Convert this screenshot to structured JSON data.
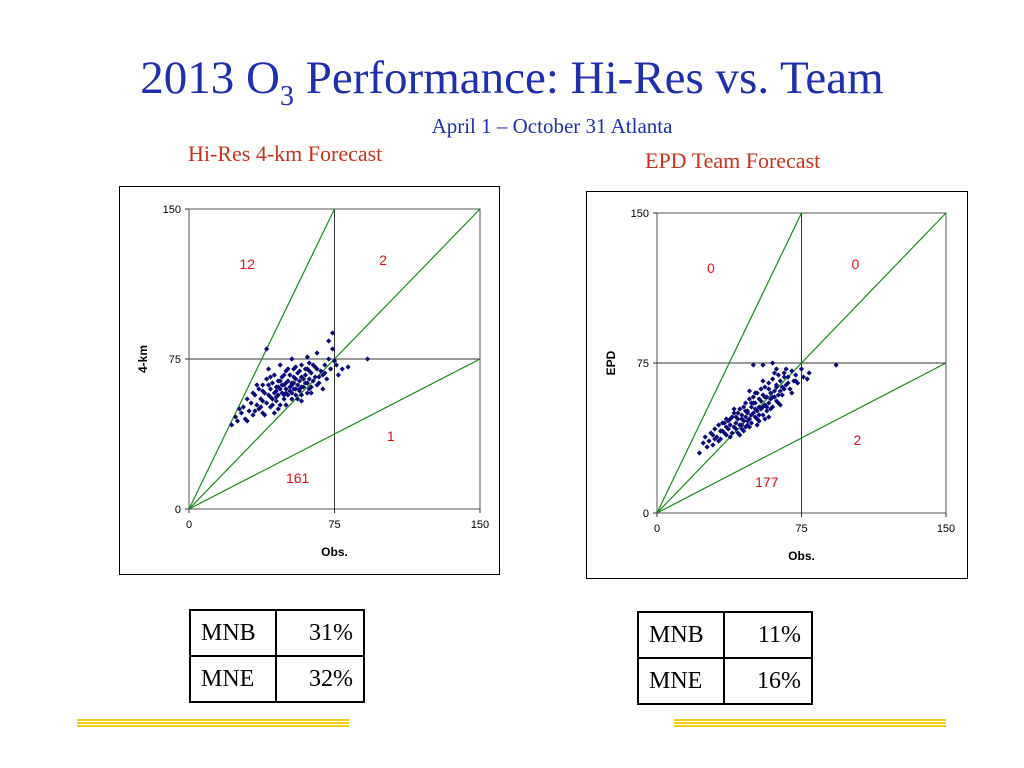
{
  "slide": {
    "title_main": "2013 O",
    "title_sub": "3",
    "title_rest": " Performance: Hi-Res vs. Team",
    "subtitle": "April 1 – October 31 Atlanta"
  },
  "panels": [
    {
      "title": "Hi-Res 4-km Forecast",
      "stats": [
        {
          "label": "MNB",
          "value": "31%"
        },
        {
          "label": "MNE",
          "value": "32%"
        }
      ]
    },
    {
      "title": "EPD Team Forecast",
      "stats": [
        {
          "label": "MNB",
          "value": "11%"
        },
        {
          "label": "MNE",
          "value": "16%"
        }
      ]
    }
  ],
  "colors": {
    "title": "#1f2fae",
    "panel_title": "#c8321e",
    "points": "#0a0a7a",
    "lines": "#1a8a1a",
    "counts": "#e01010",
    "footer": "#f2cc1c"
  },
  "chart_data": [
    {
      "type": "scatter",
      "xlabel": "Obs.",
      "ylabel": "4-km",
      "xlim": [
        0,
        150
      ],
      "ylim": [
        0,
        150
      ],
      "xticks": [
        0,
        75,
        150
      ],
      "yticks": [
        0,
        75,
        150
      ],
      "reference_lines": [
        {
          "slope": 2,
          "label": "2:1"
        },
        {
          "slope": 1,
          "label": "1:1"
        },
        {
          "slope": 0.5,
          "label": "1:2"
        }
      ],
      "quadrant_counts": [
        {
          "text": "12",
          "x": 30,
          "y": 120
        },
        {
          "text": "2",
          "x": 100,
          "y": 122
        },
        {
          "text": "1",
          "x": 104,
          "y": 34
        },
        {
          "text": "161",
          "x": 56,
          "y": 13
        }
      ],
      "points": [
        [
          22,
          42
        ],
        [
          24,
          46
        ],
        [
          25,
          44
        ],
        [
          27,
          48
        ],
        [
          28,
          51
        ],
        [
          29,
          45
        ],
        [
          30,
          55
        ],
        [
          31,
          49
        ],
        [
          32,
          53
        ],
        [
          33,
          47
        ],
        [
          34,
          57
        ],
        [
          35,
          52
        ],
        [
          36,
          60
        ],
        [
          36,
          50
        ],
        [
          37,
          55
        ],
        [
          38,
          62
        ],
        [
          38,
          48
        ],
        [
          39,
          58
        ],
        [
          40,
          53
        ],
        [
          40,
          65
        ],
        [
          41,
          57
        ],
        [
          42,
          60
        ],
        [
          42,
          51
        ],
        [
          43,
          63
        ],
        [
          43,
          55
        ],
        [
          44,
          58
        ],
        [
          44,
          67
        ],
        [
          45,
          54
        ],
        [
          45,
          61
        ],
        [
          46,
          64
        ],
        [
          46,
          57
        ],
        [
          47,
          60
        ],
        [
          47,
          52
        ],
        [
          48,
          66
        ],
        [
          48,
          58
        ],
        [
          49,
          62
        ],
        [
          49,
          55
        ],
        [
          50,
          69
        ],
        [
          50,
          60
        ],
        [
          51,
          57
        ],
        [
          51,
          64
        ],
        [
          52,
          61
        ],
        [
          52,
          67
        ],
        [
          53,
          58
        ],
        [
          53,
          63
        ],
        [
          54,
          70
        ],
        [
          54,
          60
        ],
        [
          55,
          65
        ],
        [
          55,
          57
        ],
        [
          56,
          62
        ],
        [
          56,
          68
        ],
        [
          57,
          64
        ],
        [
          57,
          59
        ],
        [
          58,
          66
        ],
        [
          58,
          72
        ],
        [
          59,
          61
        ],
        [
          60,
          67
        ],
        [
          60,
          63
        ],
        [
          61,
          70
        ],
        [
          62,
          65
        ],
        [
          62,
          60
        ],
        [
          63,
          68
        ],
        [
          64,
          64
        ],
        [
          64,
          72
        ],
        [
          65,
          66
        ],
        [
          66,
          70
        ],
        [
          67,
          63
        ],
        [
          68,
          69
        ],
        [
          69,
          67
        ],
        [
          70,
          72
        ],
        [
          71,
          65
        ],
        [
          72,
          75
        ],
        [
          73,
          70
        ],
        [
          74,
          80
        ],
        [
          76,
          72
        ],
        [
          77,
          67
        ],
        [
          79,
          70
        ],
        [
          82,
          71
        ],
        [
          92,
          75
        ],
        [
          40,
          80
        ],
        [
          35,
          62
        ],
        [
          39,
          47
        ],
        [
          41,
          70
        ],
        [
          44,
          48
        ],
        [
          47,
          72
        ],
        [
          50,
          52
        ],
        [
          53,
          75
        ],
        [
          55,
          71
        ],
        [
          58,
          54
        ],
        [
          61,
          76
        ],
        [
          63,
          58
        ],
        [
          66,
          78
        ],
        [
          69,
          60
        ],
        [
          72,
          84
        ],
        [
          74,
          88
        ],
        [
          48,
          62
        ],
        [
          52,
          59
        ],
        [
          56,
          55
        ],
        [
          60,
          70
        ],
        [
          33,
          58
        ],
        [
          38,
          54
        ],
        [
          42,
          66
        ],
        [
          46,
          50
        ],
        [
          50,
          63
        ],
        [
          54,
          66
        ],
        [
          58,
          61
        ],
        [
          62,
          73
        ],
        [
          66,
          62
        ],
        [
          45,
          59
        ],
        [
          49,
          57
        ],
        [
          53,
          62
        ],
        [
          57,
          60
        ],
        [
          61,
          63
        ],
        [
          43,
          52
        ],
        [
          47,
          64
        ],
        [
          51,
          70
        ],
        [
          55,
          60
        ],
        [
          59,
          65
        ],
        [
          63,
          61
        ],
        [
          67,
          66
        ],
        [
          37,
          51
        ],
        [
          41,
          62
        ],
        [
          45,
          56
        ],
        [
          49,
          67
        ],
        [
          53,
          55
        ],
        [
          57,
          69
        ],
        [
          61,
          58
        ],
        [
          65,
          71
        ],
        [
          26,
          50
        ],
        [
          30,
          44
        ],
        [
          34,
          49
        ],
        [
          38,
          59
        ],
        [
          42,
          56
        ],
        [
          46,
          61
        ],
        [
          50,
          58
        ],
        [
          54,
          63
        ],
        [
          58,
          57
        ],
        [
          62,
          69
        ],
        [
          70,
          68
        ],
        [
          75,
          74
        ]
      ]
    },
    {
      "type": "scatter",
      "xlabel": "Obs.",
      "ylabel": "EPD",
      "xlim": [
        0,
        150
      ],
      "ylim": [
        0,
        150
      ],
      "xticks": [
        0,
        75,
        150
      ],
      "yticks": [
        0,
        75,
        150
      ],
      "reference_lines": [
        {
          "slope": 2,
          "label": "2:1"
        },
        {
          "slope": 1,
          "label": "1:1"
        },
        {
          "slope": 0.5,
          "label": "1:2"
        }
      ],
      "quadrant_counts": [
        {
          "text": "0",
          "x": 28,
          "y": 120
        },
        {
          "text": "0",
          "x": 103,
          "y": 122
        },
        {
          "text": "2",
          "x": 104,
          "y": 34
        },
        {
          "text": "177",
          "x": 57,
          "y": 13
        }
      ],
      "points": [
        [
          22,
          30
        ],
        [
          24,
          35
        ],
        [
          25,
          38
        ],
        [
          27,
          36
        ],
        [
          28,
          40
        ],
        [
          29,
          34
        ],
        [
          30,
          42
        ],
        [
          31,
          38
        ],
        [
          32,
          44
        ],
        [
          33,
          37
        ],
        [
          34,
          41
        ],
        [
          35,
          45
        ],
        [
          36,
          39
        ],
        [
          36,
          47
        ],
        [
          37,
          42
        ],
        [
          38,
          44
        ],
        [
          38,
          38
        ],
        [
          39,
          48
        ],
        [
          40,
          43
        ],
        [
          40,
          50
        ],
        [
          41,
          45
        ],
        [
          42,
          40
        ],
        [
          42,
          47
        ],
        [
          43,
          52
        ],
        [
          43,
          44
        ],
        [
          44,
          49
        ],
        [
          44,
          42
        ],
        [
          45,
          53
        ],
        [
          45,
          46
        ],
        [
          46,
          48
        ],
        [
          46,
          55
        ],
        [
          47,
          44
        ],
        [
          47,
          51
        ],
        [
          48,
          57
        ],
        [
          48,
          47
        ],
        [
          49,
          53
        ],
        [
          49,
          45
        ],
        [
          50,
          58
        ],
        [
          50,
          50
        ],
        [
          51,
          48
        ],
        [
          51,
          55
        ],
        [
          52,
          60
        ],
        [
          52,
          51
        ],
        [
          53,
          46
        ],
        [
          53,
          57
        ],
        [
          54,
          62
        ],
        [
          54,
          52
        ],
        [
          55,
          49
        ],
        [
          55,
          59
        ],
        [
          56,
          54
        ],
        [
          56,
          63
        ],
        [
          57,
          51
        ],
        [
          57,
          58
        ],
        [
          58,
          65
        ],
        [
          58,
          55
        ],
        [
          59,
          60
        ],
        [
          60,
          53
        ],
        [
          60,
          67
        ],
        [
          61,
          58
        ],
        [
          62,
          63
        ],
        [
          62,
          56
        ],
        [
          63,
          69
        ],
        [
          64,
          61
        ],
        [
          64,
          66
        ],
        [
          65,
          59
        ],
        [
          66,
          70
        ],
        [
          67,
          64
        ],
        [
          68,
          68
        ],
        [
          69,
          62
        ],
        [
          70,
          71
        ],
        [
          71,
          66
        ],
        [
          72,
          69
        ],
        [
          73,
          65
        ],
        [
          76,
          68
        ],
        [
          79,
          70
        ],
        [
          93,
          74
        ],
        [
          50,
          74
        ],
        [
          55,
          74
        ],
        [
          60,
          75
        ],
        [
          62,
          72
        ],
        [
          40,
          52
        ],
        [
          45,
          41
        ],
        [
          48,
          61
        ],
        [
          52,
          44
        ],
        [
          55,
          66
        ],
        [
          58,
          48
        ],
        [
          61,
          70
        ],
        [
          64,
          54
        ],
        [
          67,
          72
        ],
        [
          70,
          60
        ],
        [
          36,
          43
        ],
        [
          39,
          40
        ],
        [
          42,
          50
        ],
        [
          46,
          43
        ],
        [
          49,
          49
        ],
        [
          53,
          53
        ],
        [
          56,
          47
        ],
        [
          59,
          57
        ],
        [
          63,
          59
        ],
        [
          66,
          62
        ],
        [
          30,
          37
        ],
        [
          33,
          41
        ],
        [
          37,
          46
        ],
        [
          41,
          42
        ],
        [
          44,
          47
        ],
        [
          47,
          50
        ],
        [
          51,
          52
        ],
        [
          54,
          56
        ],
        [
          57,
          53
        ],
        [
          61,
          61
        ],
        [
          26,
          33
        ],
        [
          29,
          39
        ],
        [
          32,
          36
        ],
        [
          35,
          40
        ],
        [
          38,
          47
        ],
        [
          41,
          48
        ],
        [
          44,
          44
        ],
        [
          47,
          46
        ],
        [
          50,
          55
        ],
        [
          53,
          49
        ],
        [
          56,
          58
        ],
        [
          59,
          52
        ],
        [
          62,
          64
        ],
        [
          65,
          63
        ],
        [
          68,
          65
        ],
        [
          72,
          66
        ],
        [
          75,
          72
        ],
        [
          78,
          67
        ],
        [
          34,
          45
        ],
        [
          43,
          39
        ],
        [
          46,
          51
        ],
        [
          49,
          55
        ],
        [
          52,
          47
        ],
        [
          55,
          53
        ],
        [
          58,
          62
        ],
        [
          60,
          58
        ],
        [
          63,
          55
        ],
        [
          66,
          68
        ],
        [
          48,
          43
        ],
        [
          51,
          60
        ]
      ]
    }
  ]
}
